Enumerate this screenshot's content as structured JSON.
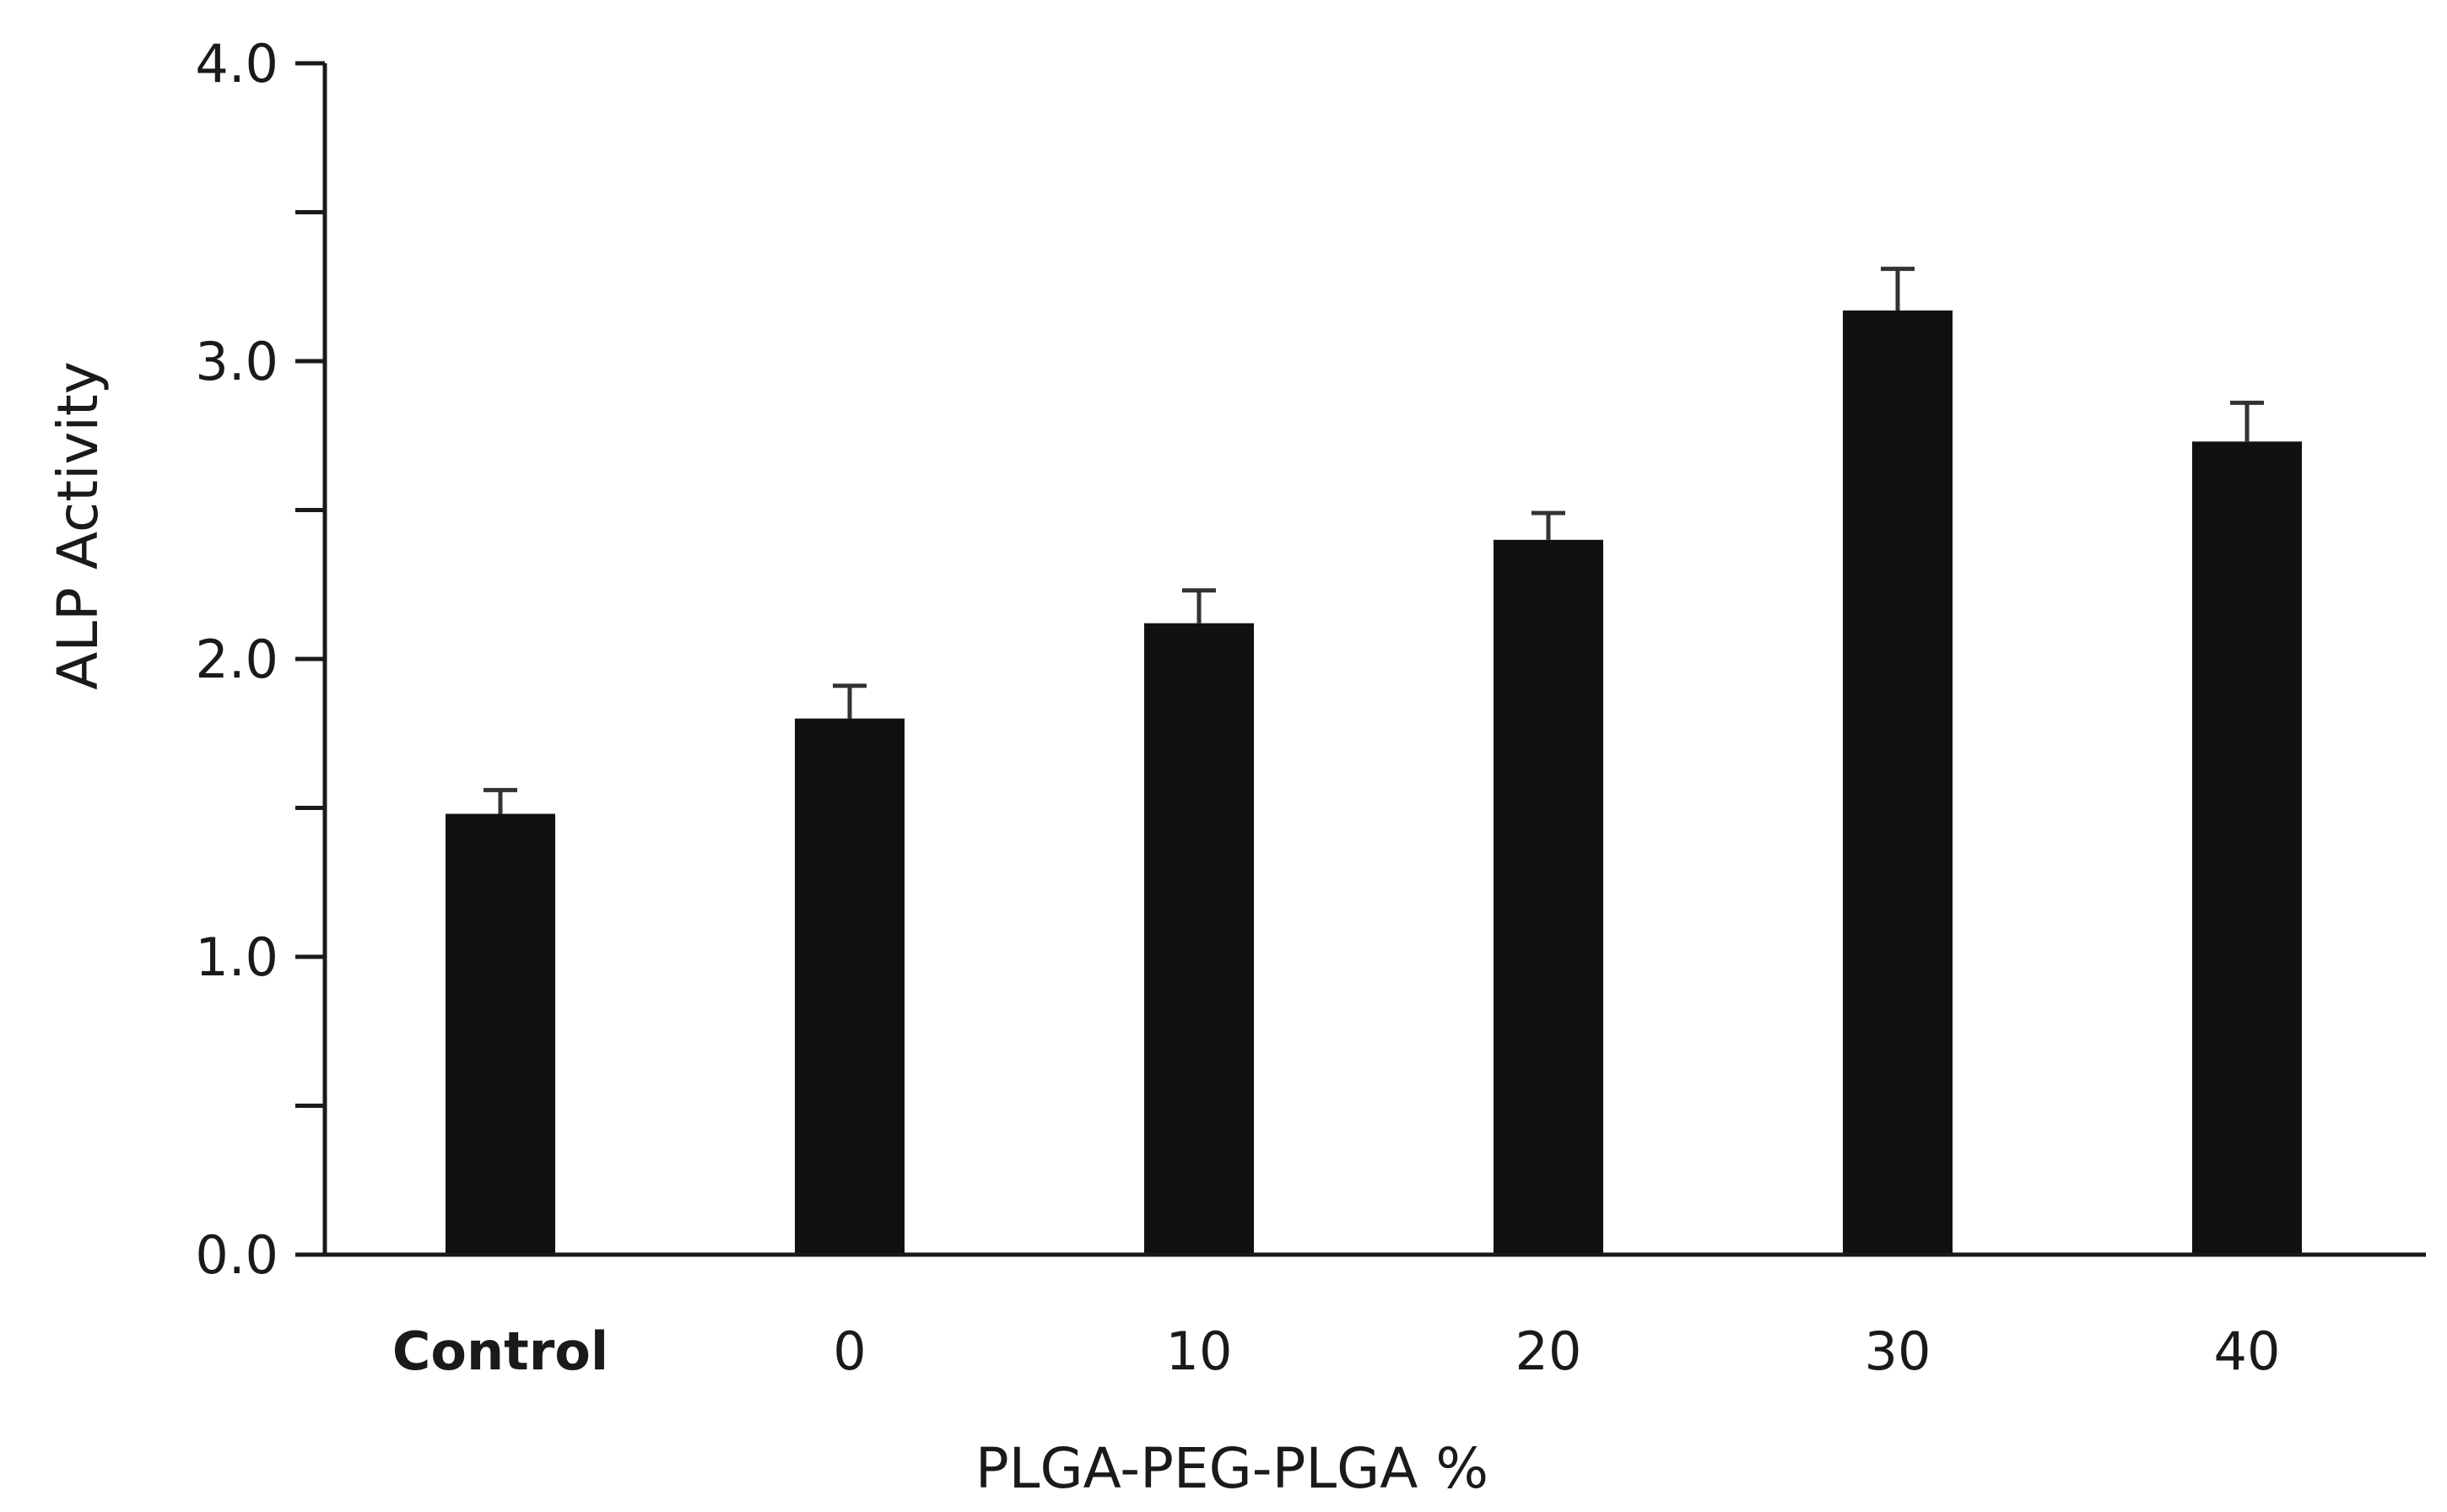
{
  "chart_data": {
    "type": "bar",
    "title": "",
    "xlabel": "PLGA-PEG-PLGA %",
    "ylabel": "ALP Activity",
    "categories": [
      "Control",
      "0",
      "10",
      "20",
      "30",
      "40"
    ],
    "bold_categories": [
      "Control"
    ],
    "values": [
      1.48,
      1.8,
      2.12,
      2.4,
      3.17,
      2.73
    ],
    "errors": [
      0.08,
      0.11,
      0.11,
      0.09,
      0.14,
      0.13
    ],
    "ylim": [
      0,
      4
    ],
    "yticks": [
      "0.0",
      "1.0",
      "2.0",
      "3.0",
      "4.0"
    ],
    "grid": false,
    "bar_color": "#111111",
    "axis_color": "#1a1a1a",
    "error_color": "#333333"
  }
}
